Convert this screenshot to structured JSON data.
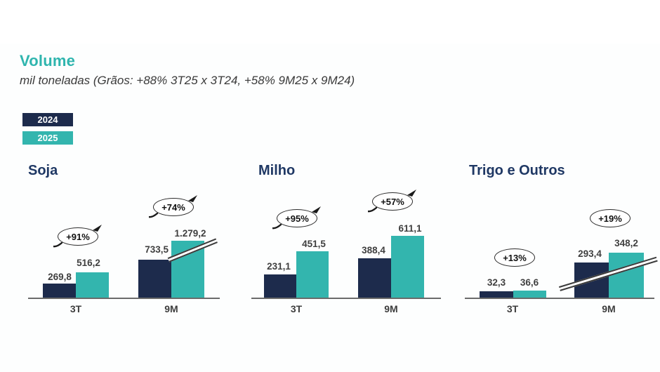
{
  "header": {
    "title": "Volume",
    "subtitle": "mil toneladas (Grãos: +88% 3T25 x 3T24, +58% 9M25 x 9M24)"
  },
  "legend": {
    "items": [
      {
        "label": "2024",
        "color": "#1D2B4C"
      },
      {
        "label": "2025",
        "color": "#33B5AE"
      }
    ]
  },
  "colors": {
    "title_teal": "#2FB5AE",
    "heading_blue": "#1F3864",
    "bar_2024": "#1D2B4C",
    "bar_2025": "#33B5AE",
    "text_dark": "#3F3F3F",
    "axis_gray": "#6B6B6B"
  },
  "chart_data": [
    {
      "type": "bar",
      "title": "Soja",
      "unit": "mil toneladas",
      "categories": [
        "3T",
        "9M"
      ],
      "series": [
        {
          "name": "2024",
          "values": [
            269.8,
            733.5
          ]
        },
        {
          "name": "2025",
          "values": [
            516.2,
            1279.2
          ]
        }
      ],
      "value_labels": [
        [
          "269,8",
          "516,2"
        ],
        [
          "733,5",
          "1.279,2"
        ]
      ],
      "growth_badges": [
        {
          "label": "+91%",
          "category": "3T",
          "style": "arrow"
        },
        {
          "label": "+74%",
          "category": "9M",
          "style": "arrow"
        }
      ],
      "axis_breaks": [
        "9M 2025 bar drawn truncated with break marks"
      ],
      "legend_position": "top-left",
      "grid": false
    },
    {
      "type": "bar",
      "title": "Milho",
      "unit": "mil toneladas",
      "categories": [
        "3T",
        "9M"
      ],
      "series": [
        {
          "name": "2024",
          "values": [
            231.1,
            388.4
          ]
        },
        {
          "name": "2025",
          "values": [
            451.5,
            611.1
          ]
        }
      ],
      "value_labels": [
        [
          "231,1",
          "451,5"
        ],
        [
          "388,4",
          "611,1"
        ]
      ],
      "growth_badges": [
        {
          "label": "+95%",
          "category": "3T",
          "style": "arrow"
        },
        {
          "label": "+57%",
          "category": "9M",
          "style": "arrow"
        }
      ],
      "axis_breaks": [],
      "legend_position": "top-left",
      "grid": false
    },
    {
      "type": "bar",
      "title": "Trigo e Outros",
      "unit": "mil toneladas",
      "categories": [
        "3T",
        "9M"
      ],
      "series": [
        {
          "name": "2024",
          "values": [
            32.3,
            293.4
          ]
        },
        {
          "name": "2025",
          "values": [
            36.6,
            348.2
          ]
        }
      ],
      "value_labels": [
        [
          "32,3",
          "36,6"
        ],
        [
          "293,4",
          "348,2"
        ]
      ],
      "growth_badges": [
        {
          "label": "+13%",
          "category": "3T",
          "style": "plain"
        },
        {
          "label": "+19%",
          "category": "9M",
          "style": "plain"
        }
      ],
      "axis_breaks": [
        "9M both bars drawn truncated with break marks"
      ],
      "legend_position": "top-left",
      "grid": false
    }
  ]
}
